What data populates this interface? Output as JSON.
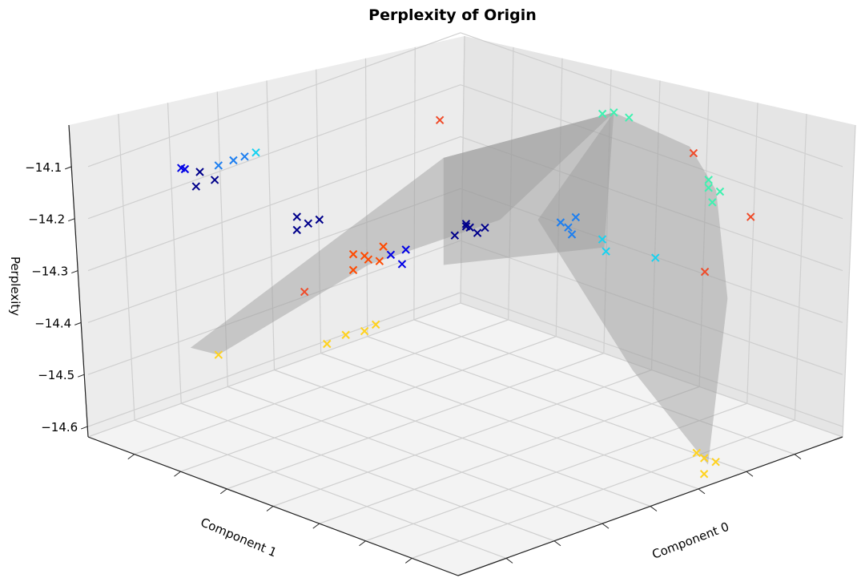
{
  "chart_data": {
    "type": "scatter",
    "title": "Perplexity of Origin",
    "xlabel": "Component 0",
    "ylabel": "Component 1",
    "zlabel": "Perplexity",
    "zticks": [
      "−14.1",
      "−14.2",
      "−14.3",
      "−14.4",
      "−14.5",
      "−14.6"
    ],
    "zlim": [
      -14.62,
      -14.02
    ],
    "xlim": [
      -1,
      1
    ],
    "ylim": [
      -1,
      1
    ],
    "grid": true,
    "marker": "x",
    "surface": {
      "color": "#9a9a9a",
      "opacity": 0.45
    },
    "colors": {
      "dark_navy": "#00008b",
      "blue": "#0000e6",
      "azure": "#1e7ff0",
      "cyan": "#18d2f0",
      "aquamarine": "#3ef2b0",
      "orange_red": "#ff4a00",
      "coral_red": "#f04a28",
      "gold": "#ffd21e"
    },
    "series": [
      {
        "color": "#00008b",
        "points": [
          [
            -0.78,
            -0.62,
            -14.13
          ],
          [
            -0.72,
            -0.6,
            -14.14
          ],
          [
            -0.76,
            -0.66,
            -14.15
          ],
          [
            -0.46,
            -0.42,
            -14.2
          ],
          [
            -0.42,
            -0.4,
            -14.21
          ],
          [
            -0.44,
            -0.44,
            -14.22
          ],
          [
            -0.38,
            -0.38,
            -14.2
          ],
          [
            0.02,
            0.0,
            -14.21
          ],
          [
            0.06,
            0.02,
            -14.22
          ],
          [
            0.04,
            -0.02,
            -14.2
          ],
          [
            0.0,
            0.04,
            -14.22
          ],
          [
            0.08,
            0.04,
            -14.21
          ],
          [
            -0.02,
            -0.02,
            -14.23
          ]
        ]
      },
      {
        "color": "#0000e6",
        "points": [
          [
            -0.82,
            -0.68,
            -14.12
          ],
          [
            -0.84,
            -0.64,
            -14.13
          ],
          [
            -0.2,
            -0.18,
            -14.27
          ],
          [
            -0.16,
            -0.14,
            -14.26
          ],
          [
            -0.14,
            -0.18,
            -14.28
          ]
        ]
      },
      {
        "color": "#1e7ff0",
        "points": [
          [
            -0.7,
            -0.52,
            -14.11
          ],
          [
            -0.66,
            -0.5,
            -14.1
          ],
          [
            -0.74,
            -0.56,
            -14.12
          ],
          [
            0.28,
            0.24,
            -14.2
          ],
          [
            0.32,
            0.28,
            -14.19
          ],
          [
            0.36,
            0.22,
            -14.21
          ],
          [
            0.26,
            0.3,
            -14.22
          ]
        ]
      },
      {
        "color": "#18d2f0",
        "points": [
          [
            -0.66,
            -0.44,
            -14.1
          ],
          [
            0.46,
            0.3,
            -14.24
          ],
          [
            0.4,
            0.34,
            -14.23
          ],
          [
            0.6,
            0.42,
            -14.25
          ]
        ]
      },
      {
        "color": "#3ef2b0",
        "points": [
          [
            0.3,
            0.5,
            -14.02
          ],
          [
            0.34,
            0.54,
            -14.03
          ],
          [
            0.28,
            0.46,
            -14.02
          ],
          [
            0.8,
            0.5,
            -14.1
          ],
          [
            0.82,
            0.54,
            -14.11
          ],
          [
            0.84,
            0.48,
            -14.12
          ],
          [
            0.78,
            0.52,
            -14.09
          ]
        ]
      },
      {
        "color": "#ff4a00",
        "points": [
          [
            -0.38,
            -0.2,
            -14.29
          ],
          [
            -0.34,
            -0.16,
            -14.3
          ],
          [
            -0.3,
            -0.22,
            -14.28
          ],
          [
            -0.26,
            -0.18,
            -14.29
          ],
          [
            -0.28,
            -0.14,
            -14.27
          ],
          [
            -0.34,
            -0.24,
            -14.31
          ]
        ]
      },
      {
        "color": "#f04a28",
        "points": [
          [
            -0.22,
            0.1,
            -14.05
          ],
          [
            0.62,
            0.6,
            -14.07
          ],
          [
            -0.5,
            -0.34,
            -14.36
          ],
          [
            0.82,
            0.7,
            -14.18
          ],
          [
            0.72,
            0.56,
            -14.28
          ]
        ]
      },
      {
        "color": "#ffd21e",
        "points": [
          [
            -0.38,
            -0.24,
            -14.44
          ],
          [
            -0.32,
            -0.2,
            -14.43
          ],
          [
            -0.3,
            -0.16,
            -14.42
          ],
          [
            -0.44,
            -0.28,
            -14.46
          ],
          [
            -0.8,
            -0.5,
            -14.5
          ],
          [
            0.98,
            0.3,
            -14.57
          ],
          [
            1.0,
            0.34,
            -14.58
          ],
          [
            0.96,
            0.28,
            -14.56
          ],
          [
            1.02,
            0.26,
            -14.59
          ]
        ]
      }
    ]
  }
}
